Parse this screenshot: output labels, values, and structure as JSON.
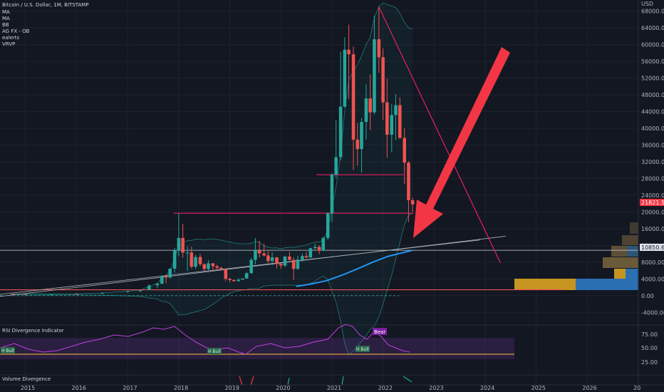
{
  "header": {
    "symbol_line": "Bitcoin / U.S. Dollar, 1M, BITSTAMP",
    "indicators": [
      "MA",
      "MA",
      "BB",
      "AG FX - OB",
      "ealerts",
      "VRVP"
    ]
  },
  "price_axis": {
    "currency": "USD",
    "labels": [
      "68000.00",
      "64000.00",
      "60000.00",
      "56000.00",
      "52000.00",
      "48000.00",
      "44000.00",
      "40000.00",
      "36000.00",
      "32000.00",
      "28000.00",
      "24000.00",
      "20000.00",
      "16000.00",
      "12000.00",
      "8000.00",
      "4000.00",
      "0.00",
      "-4000.00"
    ],
    "last_price_label": "21821.55",
    "ma_price_label": "10850.66"
  },
  "time_axis": {
    "labels": [
      "2015",
      "2016",
      "2017",
      "2018",
      "2019",
      "2020",
      "2021",
      "2022",
      "2023",
      "2024",
      "2025",
      "2026",
      "20"
    ]
  },
  "rsi_panel": {
    "title": "RSI Divergence Indicator",
    "axis_labels": [
      "75.00",
      "50.00",
      "25.00"
    ],
    "badges": [
      "H Bull",
      "H Bull",
      "H Bull"
    ],
    "bear_badge": "Bear"
  },
  "volume_panel": {
    "title": "Volume Divergence"
  },
  "colors": {
    "background": "#131722",
    "up_candle": "#26a69a",
    "down_candle": "#ef5350",
    "ma_line": "#2196f3",
    "bb_band": "#26a69a",
    "resistance": "#e91e63",
    "arrow": "#f23645",
    "rsi_line": "#c040e0",
    "rsi_band": "#7e3bb0"
  },
  "chart_data": {
    "type": "candlestick",
    "interval": "1M",
    "y_range": [
      -6000,
      70000
    ],
    "x_range": [
      2014.5,
      2027.0
    ],
    "candles": [
      {
        "t": 2014.75,
        "o": 400,
        "h": 480,
        "l": 300,
        "c": 380
      },
      {
        "t": 2015.0,
        "o": 320,
        "h": 330,
        "l": 170,
        "c": 220
      },
      {
        "t": 2015.5,
        "o": 260,
        "h": 320,
        "l": 200,
        "c": 280
      },
      {
        "t": 2016.0,
        "o": 430,
        "h": 470,
        "l": 360,
        "c": 370
      },
      {
        "t": 2016.5,
        "o": 580,
        "h": 780,
        "l": 500,
        "c": 620
      },
      {
        "t": 2017.0,
        "o": 960,
        "h": 1200,
        "l": 750,
        "c": 1050
      },
      {
        "t": 2017.25,
        "o": 1070,
        "h": 1350,
        "l": 900,
        "c": 1300
      },
      {
        "t": 2017.42,
        "o": 1350,
        "h": 2700,
        "l": 1300,
        "c": 2420
      },
      {
        "t": 2017.58,
        "o": 2480,
        "h": 2980,
        "l": 1800,
        "c": 2880
      },
      {
        "t": 2017.67,
        "o": 2880,
        "h": 4900,
        "l": 2700,
        "c": 4730
      },
      {
        "t": 2017.75,
        "o": 4730,
        "h": 5000,
        "l": 2950,
        "c": 4340
      },
      {
        "t": 2017.83,
        "o": 4340,
        "h": 6470,
        "l": 4100,
        "c": 6450
      },
      {
        "t": 2017.92,
        "o": 6450,
        "h": 11400,
        "l": 5500,
        "c": 10850
      },
      {
        "t": 2018.0,
        "o": 10850,
        "h": 19700,
        "l": 9400,
        "c": 13800
      },
      {
        "t": 2018.08,
        "o": 13800,
        "h": 17200,
        "l": 9050,
        "c": 10300
      },
      {
        "t": 2018.17,
        "o": 10300,
        "h": 11800,
        "l": 5900,
        "c": 10300
      },
      {
        "t": 2018.25,
        "o": 10300,
        "h": 11700,
        "l": 6500,
        "c": 6930
      },
      {
        "t": 2018.33,
        "o": 6930,
        "h": 9760,
        "l": 6430,
        "c": 9240
      },
      {
        "t": 2018.42,
        "o": 9240,
        "h": 9990,
        "l": 7060,
        "c": 7500
      },
      {
        "t": 2018.5,
        "o": 7500,
        "h": 7750,
        "l": 5750,
        "c": 6390
      },
      {
        "t": 2018.58,
        "o": 6390,
        "h": 8500,
        "l": 6070,
        "c": 7730
      },
      {
        "t": 2018.67,
        "o": 7730,
        "h": 7780,
        "l": 5880,
        "c": 7030
      },
      {
        "t": 2018.75,
        "o": 7030,
        "h": 7400,
        "l": 6120,
        "c": 6630
      },
      {
        "t": 2018.83,
        "o": 6630,
        "h": 6900,
        "l": 6200,
        "c": 6300
      },
      {
        "t": 2018.92,
        "o": 6300,
        "h": 6500,
        "l": 3470,
        "c": 4020
      },
      {
        "t": 2019.0,
        "o": 4020,
        "h": 4230,
        "l": 3150,
        "c": 3740
      },
      {
        "t": 2019.08,
        "o": 3740,
        "h": 3840,
        "l": 3350,
        "c": 3460
      },
      {
        "t": 2019.17,
        "o": 3460,
        "h": 4180,
        "l": 3400,
        "c": 3820
      },
      {
        "t": 2019.25,
        "o": 3820,
        "h": 4120,
        "l": 3830,
        "c": 4100
      },
      {
        "t": 2019.33,
        "o": 4100,
        "h": 5640,
        "l": 4080,
        "c": 5350
      },
      {
        "t": 2019.42,
        "o": 5350,
        "h": 9080,
        "l": 5350,
        "c": 8570
      },
      {
        "t": 2019.5,
        "o": 8570,
        "h": 13800,
        "l": 7500,
        "c": 10820
      },
      {
        "t": 2019.58,
        "o": 10820,
        "h": 13100,
        "l": 9100,
        "c": 10080
      },
      {
        "t": 2019.67,
        "o": 10080,
        "h": 12330,
        "l": 9350,
        "c": 9600
      },
      {
        "t": 2019.75,
        "o": 9600,
        "h": 10900,
        "l": 7730,
        "c": 8290
      },
      {
        "t": 2019.83,
        "o": 8290,
        "h": 10380,
        "l": 7300,
        "c": 9150
      },
      {
        "t": 2019.92,
        "o": 9150,
        "h": 9250,
        "l": 6520,
        "c": 7550
      },
      {
        "t": 2020.0,
        "o": 7550,
        "h": 7750,
        "l": 6430,
        "c": 7190
      },
      {
        "t": 2020.08,
        "o": 7190,
        "h": 9550,
        "l": 6850,
        "c": 9350
      },
      {
        "t": 2020.17,
        "o": 9350,
        "h": 10500,
        "l": 8450,
        "c": 8530
      },
      {
        "t": 2020.25,
        "o": 8530,
        "h": 9190,
        "l": 3800,
        "c": 6410
      },
      {
        "t": 2020.33,
        "o": 6410,
        "h": 9480,
        "l": 6150,
        "c": 8630
      },
      {
        "t": 2020.42,
        "o": 8630,
        "h": 10060,
        "l": 8100,
        "c": 9450
      },
      {
        "t": 2020.5,
        "o": 9450,
        "h": 10400,
        "l": 8890,
        "c": 9140
      },
      {
        "t": 2020.58,
        "o": 9140,
        "h": 11450,
        "l": 8950,
        "c": 11340
      },
      {
        "t": 2020.67,
        "o": 11340,
        "h": 12480,
        "l": 11100,
        "c": 11650
      },
      {
        "t": 2020.75,
        "o": 11650,
        "h": 12060,
        "l": 9880,
        "c": 10780
      },
      {
        "t": 2020.83,
        "o": 10780,
        "h": 14100,
        "l": 10560,
        "c": 13800
      },
      {
        "t": 2020.92,
        "o": 13800,
        "h": 19900,
        "l": 13250,
        "c": 19700
      },
      {
        "t": 2021.0,
        "o": 19700,
        "h": 29300,
        "l": 17600,
        "c": 28950
      },
      {
        "t": 2021.08,
        "o": 28950,
        "h": 41950,
        "l": 28100,
        "c": 33100
      },
      {
        "t": 2021.17,
        "o": 33100,
        "h": 58350,
        "l": 32300,
        "c": 45170
      },
      {
        "t": 2021.25,
        "o": 45170,
        "h": 61780,
        "l": 45000,
        "c": 58790
      },
      {
        "t": 2021.33,
        "o": 58790,
        "h": 64800,
        "l": 47000,
        "c": 57700
      },
      {
        "t": 2021.42,
        "o": 57700,
        "h": 59560,
        "l": 30000,
        "c": 37300
      },
      {
        "t": 2021.5,
        "o": 37300,
        "h": 41300,
        "l": 31000,
        "c": 35050
      },
      {
        "t": 2021.58,
        "o": 35050,
        "h": 42500,
        "l": 29360,
        "c": 41530
      },
      {
        "t": 2021.67,
        "o": 41530,
        "h": 50500,
        "l": 37330,
        "c": 47140
      },
      {
        "t": 2021.75,
        "o": 47140,
        "h": 52950,
        "l": 39600,
        "c": 43820
      },
      {
        "t": 2021.83,
        "o": 43820,
        "h": 66930,
        "l": 43300,
        "c": 61300
      },
      {
        "t": 2021.92,
        "o": 61300,
        "h": 69000,
        "l": 53300,
        "c": 57000
      },
      {
        "t": 2022.0,
        "o": 57000,
        "h": 59100,
        "l": 42000,
        "c": 46210
      },
      {
        "t": 2022.08,
        "o": 46210,
        "h": 51900,
        "l": 32950,
        "c": 38480
      },
      {
        "t": 2022.17,
        "o": 38480,
        "h": 45850,
        "l": 34300,
        "c": 43180
      },
      {
        "t": 2022.25,
        "o": 43180,
        "h": 48190,
        "l": 37150,
        "c": 45540
      },
      {
        "t": 2022.33,
        "o": 45540,
        "h": 47450,
        "l": 37500,
        "c": 37700
      },
      {
        "t": 2022.42,
        "o": 37700,
        "h": 40000,
        "l": 26700,
        "c": 31800
      },
      {
        "t": 2022.5,
        "o": 31800,
        "h": 32200,
        "l": 17600,
        "c": 22800
      },
      {
        "t": 2022.58,
        "o": 22800,
        "h": 23400,
        "l": 20000,
        "c": 21821
      }
    ],
    "ma_line": [
      {
        "t": 2020.3,
        "y": 2200
      },
      {
        "t": 2020.6,
        "y": 2800
      },
      {
        "t": 2020.9,
        "y": 3600
      },
      {
        "t": 2021.2,
        "y": 4900
      },
      {
        "t": 2021.5,
        "y": 6400
      },
      {
        "t": 2021.8,
        "y": 8000
      },
      {
        "t": 2022.1,
        "y": 9400
      },
      {
        "t": 2022.4,
        "y": 10300
      },
      {
        "t": 2022.58,
        "y": 10850
      }
    ],
    "resistance_lines": [
      {
        "from": 2017.9,
        "to": 2022.6,
        "y": 19700
      },
      {
        "from": 2020.7,
        "to": 2022.4,
        "y": 28900
      }
    ],
    "support_line": {
      "from": 2014.5,
      "to": 2025.5,
      "y": 1400
    },
    "trend_lines": [
      {
        "t1": 2014.5,
        "y1": 300,
        "t2": 2023.9,
        "y2": 13300
      },
      {
        "t1": 2014.5,
        "y1": -200,
        "t2": 2024.4,
        "y2": 14200
      }
    ],
    "horizontal_ref": {
      "y": 10850
    },
    "descending_line": {
      "t1": 2021.92,
      "y1": 69000,
      "t2": 2024.3,
      "y2": 7800
    }
  }
}
